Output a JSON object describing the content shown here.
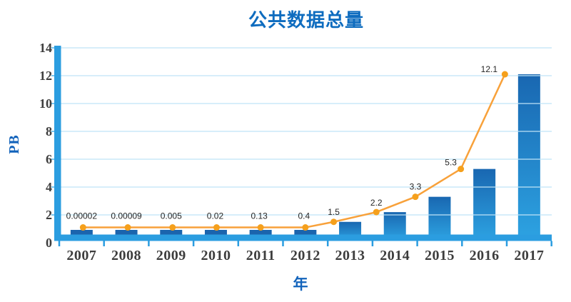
{
  "chart_data": {
    "type": "bar+line",
    "title": "公共数据总量",
    "ylabel": "PB",
    "xlabel": "年",
    "categories": [
      "2007",
      "2008",
      "2009",
      "2010",
      "2011",
      "2012",
      "2013",
      "2014",
      "2015",
      "2016",
      "2017"
    ],
    "series": [
      {
        "name": "bars",
        "type": "bar",
        "values": [
          2e-05,
          9e-05,
          0.005,
          0.02,
          0.13,
          0.4,
          1.5,
          2.2,
          3.3,
          5.3,
          12.1
        ]
      },
      {
        "name": "line",
        "type": "line",
        "values": [
          2e-05,
          9e-05,
          0.005,
          0.02,
          0.13,
          0.4,
          1.5,
          2.2,
          3.3,
          5.3,
          12.1
        ]
      }
    ],
    "data_labels": [
      "0.00002",
      "0.00009",
      "0.005",
      "0.02",
      "0.13",
      "0.4",
      "1.5",
      "2.2",
      "3.3",
      "5.3",
      "12.1"
    ],
    "y_ticks": [
      "0",
      "2",
      "4",
      "6",
      "8",
      "10",
      "12",
      "14"
    ],
    "ylim": [
      0,
      14
    ],
    "grid": true,
    "legend": "none",
    "colors": {
      "title": "#0e6cbf",
      "axis_title": "#1263bb",
      "tick_label": "#3d3d3d",
      "data_label": "#262626",
      "axis": "#2b9de0",
      "tick": "#2b9de0",
      "y_tick_stub": "#7ec8ee",
      "gridline": "#bfe3f6",
      "bar_gradient_top": "#1967b1",
      "bar_gradient_bottom": "#2da3e2",
      "bar_small": "#1b64ad",
      "line": "#f8a13a",
      "marker": "#f5a01c"
    }
  }
}
